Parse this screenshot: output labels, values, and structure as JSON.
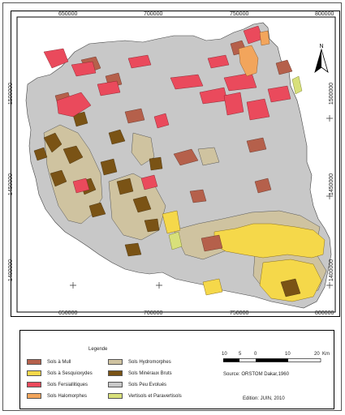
{
  "map": {
    "x_ticks": [
      "650000",
      "700000",
      "750000",
      "800000"
    ],
    "y_ticks": [
      "1500000",
      "1450000",
      "1400000"
    ],
    "north_label": "N"
  },
  "legend": {
    "title": "Legende",
    "items": [
      {
        "label": "Sols à Mull",
        "color": "#b5604b"
      },
      {
        "label": "Sols à Sesquioxydes",
        "color": "#f5d84a"
      },
      {
        "label": "Sols Fersiallitiques",
        "color": "#ea4a5c"
      },
      {
        "label": "Sols Halomorphes",
        "color": "#f2a55c"
      },
      {
        "label": "Sols Hydromorphes",
        "color": "#cfc3a0"
      },
      {
        "label": "Sols Minéraux Bruts",
        "color": "#7a5315"
      },
      {
        "label": "Sols Peu Evolués",
        "color": "#c8c8c8"
      },
      {
        "label": "Vertisols et Paravertisols",
        "color": "#d8e07a"
      }
    ]
  },
  "scale": {
    "ticks": [
      "10",
      "5",
      "0",
      "10",
      "20"
    ],
    "unit": "Km"
  },
  "source": "Source: ORSTOM Dakar,1960",
  "edition": "Edition: JUIN, 2010"
}
